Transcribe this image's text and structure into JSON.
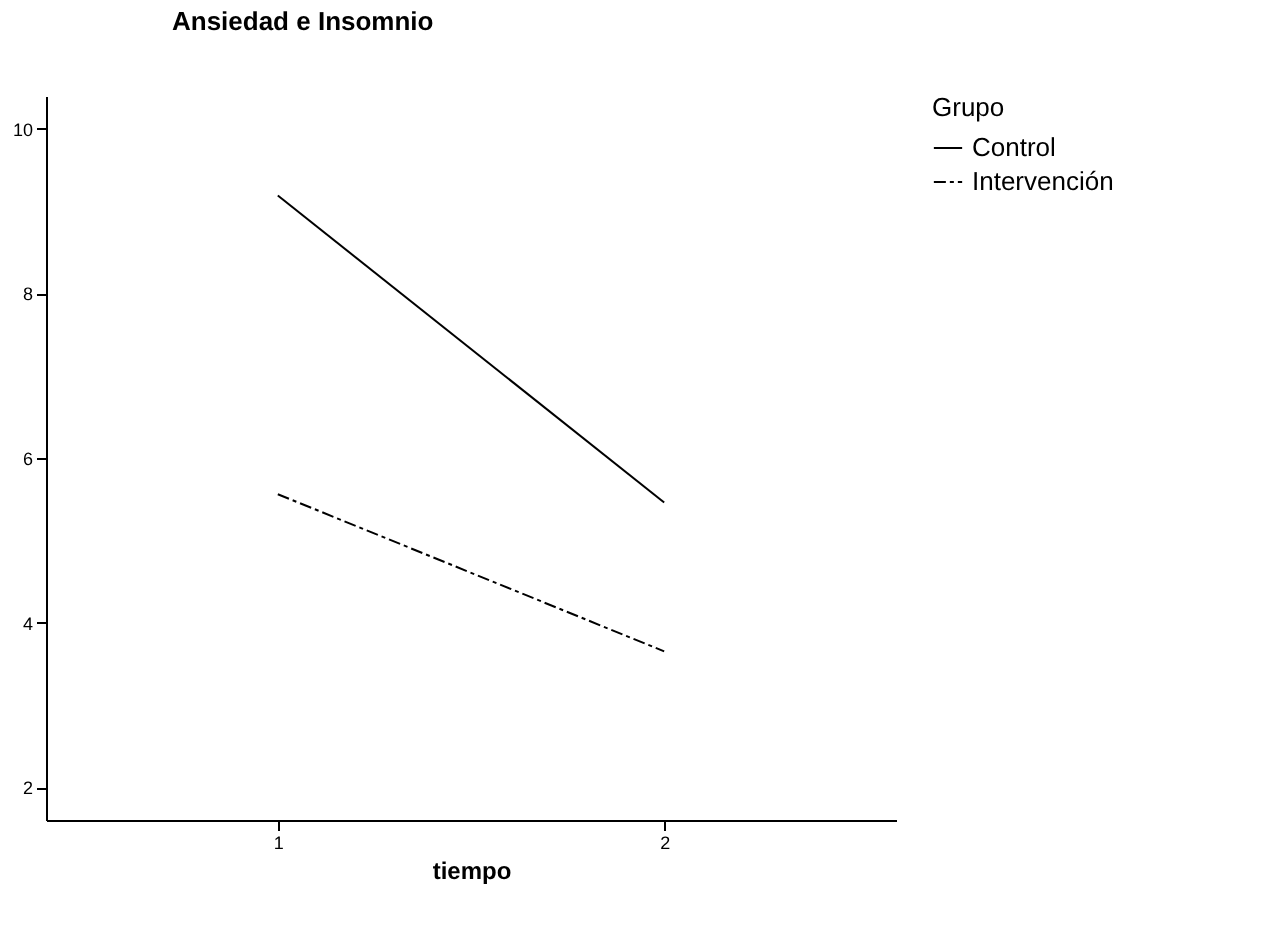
{
  "chart_data": {
    "type": "line",
    "title": "Ansiedad e Insomnio",
    "xlabel": "tiempo",
    "legend_title": "Grupo",
    "x": [
      1,
      2
    ],
    "xlim": [
      0.4,
      2.6
    ],
    "xticks": [
      1,
      2
    ],
    "ylim": [
      1.6,
      10.4
    ],
    "yticks": [
      2,
      4,
      6,
      8,
      10
    ],
    "series": [
      {
        "name": "Control",
        "color": "#000000",
        "line_style": "solid",
        "values": [
          9.19,
          5.46
        ]
      },
      {
        "name": "Intervención",
        "color": "#000000",
        "line_style": "dashed",
        "values": [
          5.56,
          3.65
        ]
      }
    ],
    "grid": false,
    "legend": "top right",
    "marker": "none"
  }
}
